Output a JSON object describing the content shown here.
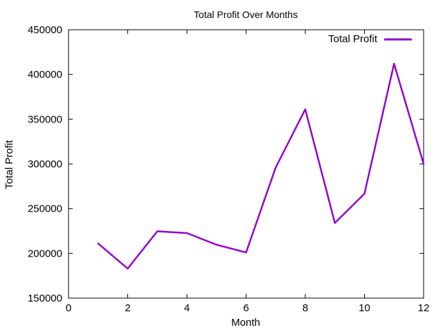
{
  "chart_data": {
    "type": "line",
    "title": "Total Profit Over Months",
    "xlabel": "Month",
    "ylabel": "Total Profit",
    "xlim": [
      0,
      12
    ],
    "ylim": [
      150000,
      450000
    ],
    "xticks": [
      0,
      2,
      4,
      6,
      8,
      10,
      12
    ],
    "yticks": [
      150000,
      200000,
      250000,
      300000,
      350000,
      400000,
      450000
    ],
    "grid": false,
    "legend_position": "top-right",
    "series": [
      {
        "name": "Total Profit",
        "color": "#9400d3",
        "x": [
          1,
          2,
          3,
          4,
          5,
          6,
          7,
          8,
          9,
          10,
          11,
          12
        ],
        "y": [
          211000,
          183000,
          224700,
          222700,
          209700,
          201000,
          296000,
          361000,
          234000,
          266700,
          412000,
          300000
        ]
      }
    ]
  }
}
